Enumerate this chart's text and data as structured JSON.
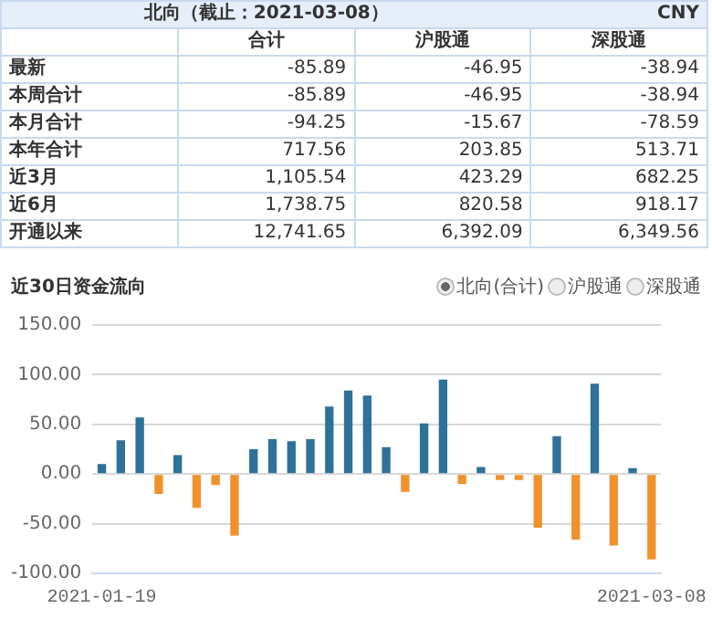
{
  "chart_data": [
    {
      "type": "other",
      "title": "北向（截止：2021-03-08）",
      "subtitle": "CNY",
      "categories": [
        "合计",
        "沪股通",
        "深股通"
      ],
      "y_categories": [
        "最新",
        "本周合计",
        "本月合计",
        "本年合计",
        "近3月",
        "近6月",
        "开通以来"
      ],
      "cell_labels": [
        [
          "-85.89",
          "-46.95",
          "-38.94"
        ],
        [
          "-85.89",
          "-46.95",
          "-38.94"
        ],
        [
          "-94.25",
          "-15.67",
          "-78.59"
        ],
        [
          "717.56",
          "203.85",
          "513.71"
        ],
        [
          "1,105.54",
          "423.29",
          "682.25"
        ],
        [
          "1,738.75",
          "820.58",
          "918.17"
        ],
        [
          "12,741.65",
          "6,392.09",
          "6,349.56"
        ]
      ]
    },
    {
      "type": "bar",
      "title": "近30日资金流向",
      "categories": [
        "2021-01-19",
        null,
        null,
        null,
        null,
        null,
        null,
        null,
        null,
        null,
        null,
        null,
        null,
        null,
        null,
        null,
        null,
        null,
        null,
        null,
        null,
        null,
        null,
        null,
        null,
        null,
        null,
        null,
        null,
        "2021-03-08"
      ],
      "series": [
        {
          "name": "北向(合计)",
          "values": [
            10,
            34,
            57,
            -20,
            19,
            -34,
            -11,
            -62,
            25,
            35,
            33,
            35,
            68,
            84,
            79,
            27,
            -18,
            51,
            95,
            -10,
            7,
            -6,
            -6,
            -54,
            38,
            -66,
            91,
            -72,
            6,
            -85.89
          ],
          "colors": [
            "#2e7199",
            "#2e7199",
            "#2e7199",
            "#f0922b",
            "#2e7199",
            "#f0922b",
            "#f0922b",
            "#f0922b",
            "#2e7199",
            "#2e7199",
            "#2e7199",
            "#2e7199",
            "#2e7199",
            "#2e7199",
            "#2e7199",
            "#2e7199",
            "#f0922b",
            "#2e7199",
            "#2e7199",
            "#f0922b",
            "#2e7199",
            "#f0922b",
            "#f0922b",
            "#f0922b",
            "#2e7199",
            "#f0922b",
            "#2e7199",
            "#f0922b",
            "#2e7199",
            "#f0922b"
          ]
        }
      ],
      "annotations": [
        "沪股通",
        "深股通"
      ],
      "legend": "top right",
      "grid": "y",
      "ylim": [
        -100,
        150
      ],
      "yticks": [
        {
          "value": -100,
          "label": "-100.00"
        },
        {
          "value": -50,
          "label": "-50.00"
        },
        {
          "value": 0,
          "label": "0.00"
        },
        {
          "value": 50,
          "label": "50.00"
        },
        {
          "value": 100,
          "label": "100.00"
        },
        {
          "value": 150,
          "label": "150.00"
        }
      ]
    }
  ]
}
